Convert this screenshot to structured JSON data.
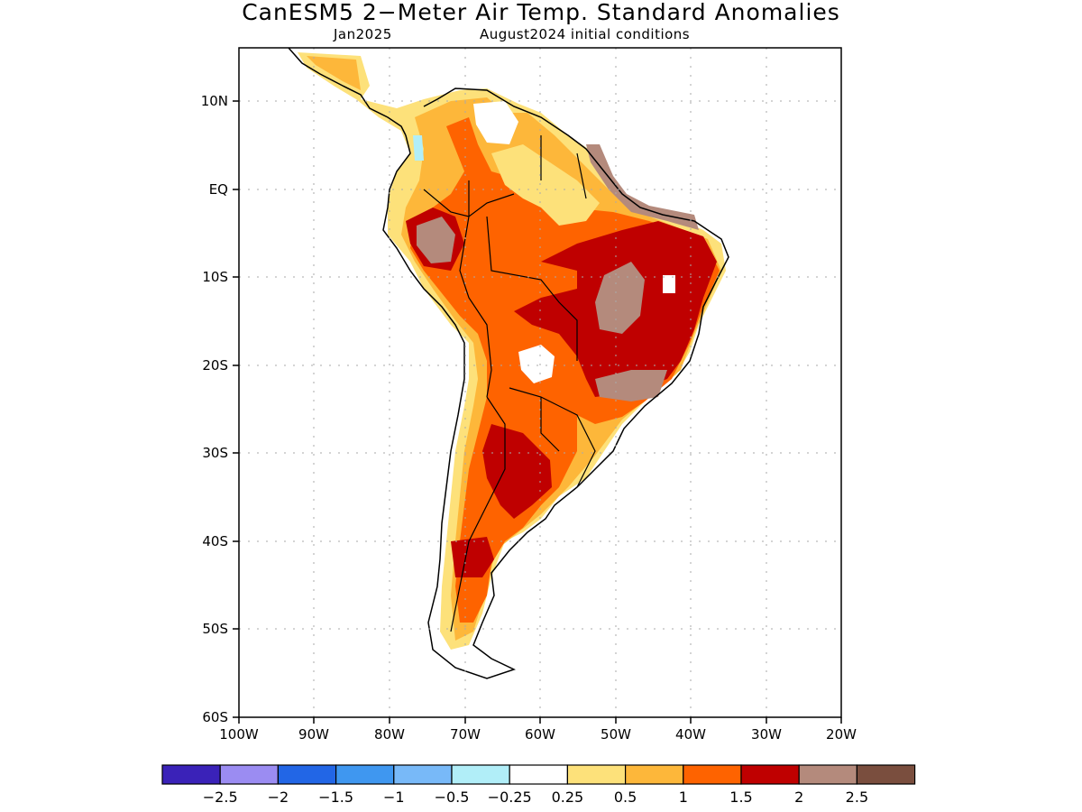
{
  "title": "CanESM5 2−Meter Air Temp. Standard Anomalies",
  "subtitle_left": "Jan2025",
  "subtitle_right": "August2024 initial conditions",
  "y_ticks": [
    "10N",
    "EQ",
    "10S",
    "20S",
    "30S",
    "40S",
    "50S",
    "60S"
  ],
  "x_ticks": [
    "100W",
    "90W",
    "80W",
    "70W",
    "60W",
    "50W",
    "40W",
    "30W",
    "20W"
  ],
  "colorbar": {
    "colors": [
      "#3a22b8",
      "#9b8cf2",
      "#2266e6",
      "#3f97f0",
      "#78b9f8",
      "#b1eef8",
      "#ffffff",
      "#fde17a",
      "#fdb73a",
      "#fe6300",
      "#bf0000",
      "#b48a7c",
      "#7a4e3e"
    ],
    "labels": [
      "−2.5",
      "−2",
      "−1.5",
      "−1",
      "−0.5",
      "−0.25",
      "0.25",
      "0.5",
      "1",
      "1.5",
      "2",
      "2.5"
    ]
  },
  "map_data": {
    "region": "South America",
    "lon_range": [
      -100,
      -20
    ],
    "lat_range": [
      -60,
      16
    ],
    "grid": "dotted",
    "variable": "2-meter air temperature standard anomaly"
  }
}
